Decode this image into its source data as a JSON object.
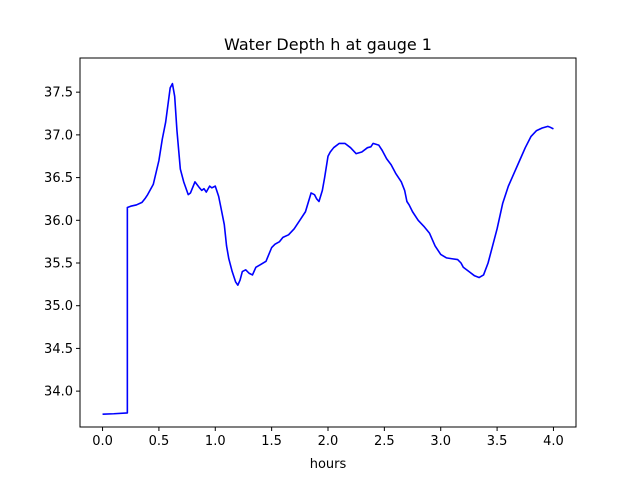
{
  "chart_data": {
    "type": "line",
    "title": "Water Depth h at gauge 1",
    "xlabel": "hours",
    "ylabel": "",
    "xlim": [
      -0.2,
      4.2
    ],
    "ylim": [
      33.58,
      37.9
    ],
    "xticks": [
      "0.0",
      "0.5",
      "1.0",
      "1.5",
      "2.0",
      "2.5",
      "3.0",
      "3.5",
      "4.0"
    ],
    "yticks": [
      "34.0",
      "34.5",
      "35.0",
      "35.5",
      "36.0",
      "36.5",
      "37.0",
      "37.5"
    ],
    "grid": false,
    "series": [
      {
        "color": "#0000ff",
        "x": [
          0.0,
          0.1,
          0.22,
          0.22,
          0.25,
          0.3,
          0.35,
          0.38,
          0.4,
          0.45,
          0.5,
          0.53,
          0.56,
          0.6,
          0.62,
          0.64,
          0.66,
          0.69,
          0.72,
          0.76,
          0.78,
          0.82,
          0.86,
          0.88,
          0.9,
          0.92,
          0.95,
          0.97,
          1.0,
          1.03,
          1.05,
          1.08,
          1.1,
          1.12,
          1.15,
          1.18,
          1.2,
          1.22,
          1.24,
          1.27,
          1.3,
          1.33,
          1.36,
          1.4,
          1.45,
          1.5,
          1.53,
          1.57,
          1.6,
          1.65,
          1.7,
          1.75,
          1.8,
          1.85,
          1.88,
          1.9,
          1.92,
          1.95,
          1.97,
          2.0,
          2.02,
          2.05,
          2.1,
          2.15,
          2.2,
          2.25,
          2.3,
          2.35,
          2.38,
          2.4,
          2.45,
          2.48,
          2.52,
          2.56,
          2.6,
          2.65,
          2.68,
          2.7,
          2.72,
          2.75,
          2.8,
          2.85,
          2.9,
          2.95,
          3.0,
          3.05,
          3.1,
          3.15,
          3.18,
          3.2,
          3.25,
          3.3,
          3.34,
          3.38,
          3.42,
          3.46,
          3.5,
          3.55,
          3.6,
          3.65,
          3.7,
          3.75,
          3.8,
          3.85,
          3.9,
          3.95,
          3.97,
          4.0
        ],
        "y": [
          33.73,
          33.735,
          33.745,
          36.15,
          36.165,
          36.18,
          36.21,
          36.26,
          36.3,
          36.42,
          36.7,
          36.95,
          37.15,
          37.55,
          37.6,
          37.45,
          37.05,
          36.6,
          36.45,
          36.3,
          36.32,
          36.45,
          36.38,
          36.35,
          36.37,
          36.33,
          36.4,
          36.38,
          36.4,
          36.28,
          36.15,
          35.95,
          35.7,
          35.55,
          35.4,
          35.28,
          35.24,
          35.3,
          35.4,
          35.42,
          35.38,
          35.36,
          35.45,
          35.48,
          35.52,
          35.68,
          35.72,
          35.75,
          35.8,
          35.83,
          35.9,
          36.0,
          36.1,
          36.32,
          36.3,
          36.25,
          36.22,
          36.35,
          36.5,
          36.75,
          36.8,
          36.85,
          36.9,
          36.9,
          36.85,
          36.78,
          36.8,
          36.85,
          36.86,
          36.9,
          36.88,
          36.82,
          36.72,
          36.65,
          36.55,
          36.45,
          36.35,
          36.22,
          36.18,
          36.1,
          36.0,
          35.93,
          35.85,
          35.7,
          35.6,
          35.56,
          35.55,
          35.54,
          35.5,
          35.45,
          35.4,
          35.35,
          35.33,
          35.36,
          35.5,
          35.7,
          35.9,
          36.2,
          36.4,
          36.55,
          36.7,
          36.85,
          36.98,
          37.05,
          37.08,
          37.1,
          37.09,
          37.07
        ]
      }
    ]
  }
}
